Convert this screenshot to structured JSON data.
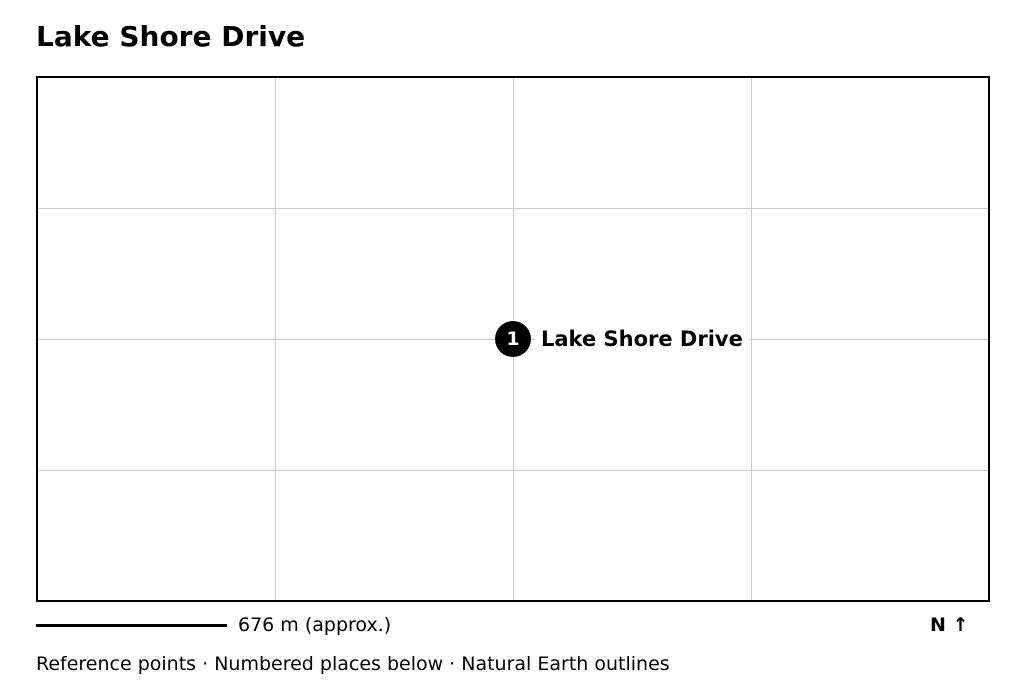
{
  "map": {
    "title": "Lake Shore Drive",
    "places": [
      {
        "number": "1",
        "label": "Lake Shore Drive"
      }
    ],
    "scale_label": "676 m (approx.)",
    "north_label": "N ↑",
    "attribution": "Reference points · Numbered places below · Natural Earth outlines"
  }
}
